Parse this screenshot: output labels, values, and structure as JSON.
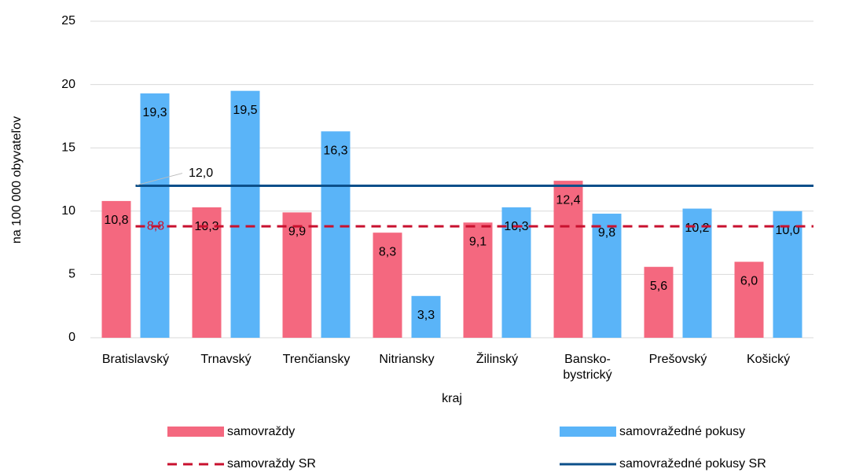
{
  "chart_data": {
    "type": "bar",
    "ylabel": "na 100 000 obyvateľov",
    "xlabel": "kraj",
    "categories": [
      "Bratislavský",
      "Trnavský",
      "Trenčiansky",
      "Nitriansky",
      "Žilinský",
      "Bansko-\nbystrický",
      "Prešovský",
      "Košický"
    ],
    "series": [
      {
        "name": "samovraždy",
        "color": "#f4687f",
        "values": [
          10.8,
          10.3,
          9.9,
          8.3,
          9.1,
          12.4,
          5.6,
          6.0
        ],
        "value_labels": [
          "10,8",
          "10,3",
          "9,9",
          "8,3",
          "9,1",
          "12,4",
          "5,6",
          "6,0"
        ]
      },
      {
        "name": "samovražedné pokusy",
        "color": "#5ab4f8",
        "values": [
          19.3,
          19.5,
          16.3,
          3.3,
          10.3,
          9.8,
          10.2,
          10.0
        ],
        "value_labels": [
          "19,3",
          "19,5",
          "16,3",
          "3,3",
          "10,3",
          "9,8",
          "10,2",
          "10,0"
        ]
      }
    ],
    "reference_lines": [
      {
        "name": "samovraždy SR",
        "value": 8.8,
        "value_label": "8,8",
        "color": "#c8102e",
        "style": "dashed"
      },
      {
        "name": "samovražedné pokusy SR",
        "value": 12.0,
        "value_label": "12,0",
        "color": "#0b4f8a",
        "style": "solid"
      }
    ],
    "ylim": [
      0,
      25
    ],
    "yticks": [
      0,
      5,
      10,
      15,
      20,
      25
    ],
    "grid": true
  }
}
